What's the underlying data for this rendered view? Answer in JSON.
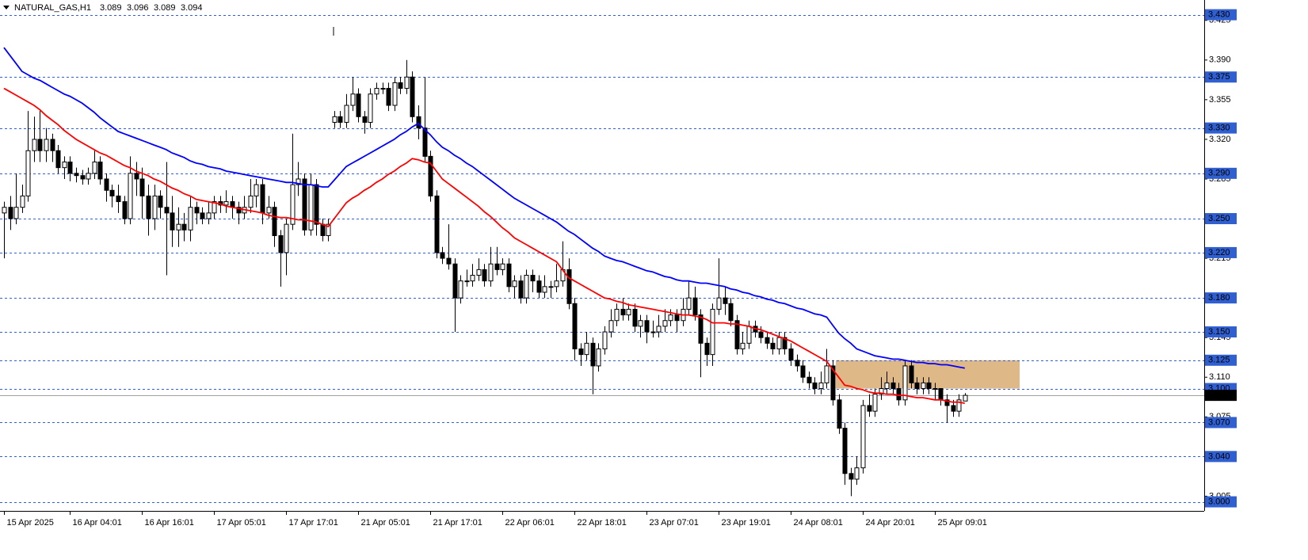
{
  "chart_data": {
    "type": "candlestick",
    "symbol": "NATURAL_GAS,H1",
    "categories": [
      "15 Apr 2025",
      null,
      null,
      null,
      null,
      null,
      null,
      null,
      null,
      null,
      null,
      "16 Apr 04:01",
      null,
      null,
      null,
      null,
      null,
      null,
      null,
      null,
      null,
      null,
      null,
      "16 Apr 16:01",
      null,
      null,
      null,
      null,
      null,
      null,
      null,
      null,
      null,
      null,
      null,
      "17 Apr 05:01",
      null,
      null,
      null,
      null,
      null,
      null,
      null,
      null,
      null,
      null,
      null,
      "17 Apr 17:01",
      null,
      null,
      null,
      null,
      null,
      null,
      null,
      null,
      null,
      null,
      null,
      "21 Apr 05:01",
      null,
      null,
      null,
      null,
      null,
      null,
      null,
      null,
      null,
      null,
      null,
      "21 Apr 17:01",
      null,
      null,
      null,
      null,
      null,
      null,
      null,
      null,
      null,
      null,
      null,
      "22 Apr 06:01",
      null,
      null,
      null,
      null,
      null,
      null,
      null,
      null,
      null,
      null,
      null,
      "22 Apr 18:01",
      null,
      null,
      null,
      null,
      null,
      null,
      null,
      null,
      null,
      null,
      null,
      "23 Apr 07:01",
      null,
      null,
      null,
      null,
      null,
      null,
      null,
      null,
      null,
      null,
      null,
      "23 Apr 19:01",
      null,
      null,
      null,
      null,
      null,
      null,
      null,
      null,
      null,
      null,
      null,
      "24 Apr 08:01",
      null,
      null,
      null,
      null,
      null,
      null,
      null,
      null,
      null,
      null,
      null,
      "24 Apr 20:01",
      null,
      null,
      null,
      null,
      null,
      null,
      null,
      null,
      null,
      null,
      null,
      "25 Apr 09:01",
      null,
      null,
      null,
      null,
      null
    ],
    "open": [
      3.255,
      3.26,
      3.25,
      3.26,
      3.27,
      3.31,
      3.32,
      3.31,
      3.32,
      3.31,
      3.295,
      3.3,
      3.29,
      3.288,
      3.285,
      3.29,
      3.3,
      3.285,
      3.275,
      3.27,
      3.265,
      3.25,
      3.29,
      3.285,
      3.27,
      3.25,
      3.27,
      3.26,
      3.255,
      3.24,
      3.245,
      3.24,
      3.26,
      3.255,
      3.25,
      3.255,
      3.265,
      3.262,
      3.265,
      3.26,
      3.255,
      3.26,
      3.27,
      3.28,
      3.255,
      3.26,
      3.235,
      3.22,
      3.245,
      3.28,
      3.285,
      3.24,
      3.28,
      3.245,
      3.235,
      3.335,
      3.34,
      3.335,
      3.35,
      3.36,
      3.34,
      3.335,
      3.36,
      3.365,
      3.365,
      3.35,
      3.37,
      3.365,
      3.375,
      3.34,
      3.33,
      3.305,
      3.27,
      3.22,
      3.215,
      3.21,
      3.18,
      3.195,
      3.195,
      3.2,
      3.205,
      3.195,
      3.21,
      3.205,
      3.21,
      3.19,
      3.195,
      3.18,
      3.2,
      3.195,
      3.185,
      3.19,
      3.19,
      3.195,
      3.205,
      3.175,
      3.135,
      3.13,
      3.14,
      3.12,
      3.135,
      3.15,
      3.16,
      3.17,
      3.165,
      3.17,
      3.155,
      3.16,
      3.15,
      3.15,
      3.155,
      3.16,
      3.165,
      3.16,
      3.17,
      3.18,
      3.165,
      3.14,
      3.13,
      3.17,
      3.18,
      3.175,
      3.16,
      3.135,
      3.14,
      3.155,
      3.15,
      3.145,
      3.14,
      3.135,
      3.145,
      3.135,
      3.125,
      3.12,
      3.11,
      3.105,
      3.1,
      3.105,
      3.12,
      3.09,
      3.065,
      3.025,
      3.02,
      3.03,
      3.085,
      3.08,
      3.095,
      3.1,
      3.105,
      3.1,
      3.09,
      3.12,
      3.105,
      3.1,
      3.105,
      3.1,
      3.1,
      3.09,
      3.085,
      3.08,
      3.089
    ],
    "high": [
      3.265,
      3.27,
      3.29,
      3.28,
      3.345,
      3.34,
      3.345,
      3.33,
      3.325,
      3.315,
      3.305,
      3.305,
      3.295,
      3.293,
      3.295,
      3.31,
      3.305,
      3.29,
      3.28,
      3.28,
      3.27,
      3.305,
      3.3,
      3.295,
      3.28,
      3.28,
      3.275,
      3.3,
      3.27,
      3.26,
      3.255,
      3.27,
      3.265,
      3.26,
      3.265,
      3.27,
      3.27,
      3.275,
      3.27,
      3.265,
      3.27,
      3.285,
      3.285,
      3.285,
      3.27,
      3.265,
      3.24,
      3.25,
      3.325,
      3.3,
      3.29,
      3.29,
      3.285,
      3.25,
      3.25,
      3.345,
      3.345,
      3.36,
      3.375,
      3.365,
      3.345,
      3.365,
      3.37,
      3.37,
      3.37,
      3.375,
      3.375,
      3.39,
      3.38,
      3.35,
      3.375,
      3.31,
      3.275,
      3.225,
      3.245,
      3.215,
      3.2,
      3.205,
      3.21,
      3.215,
      3.21,
      3.225,
      3.225,
      3.215,
      3.215,
      3.2,
      3.2,
      3.205,
      3.205,
      3.2,
      3.2,
      3.195,
      3.21,
      3.23,
      3.215,
      3.18,
      3.14,
      3.15,
      3.145,
      3.14,
      3.155,
      3.17,
      3.175,
      3.18,
      3.175,
      3.175,
      3.165,
      3.165,
      3.16,
      3.165,
      3.17,
      3.17,
      3.17,
      3.18,
      3.195,
      3.19,
      3.17,
      3.145,
      3.175,
      3.215,
      3.19,
      3.18,
      3.165,
      3.15,
      3.16,
      3.16,
      3.155,
      3.15,
      3.145,
      3.15,
      3.15,
      3.14,
      3.13,
      3.125,
      3.115,
      3.11,
      3.115,
      3.135,
      3.125,
      3.095,
      3.07,
      3.03,
      3.04,
      3.09,
      3.095,
      3.1,
      3.11,
      3.115,
      3.11,
      3.105,
      3.125,
      3.125,
      3.11,
      3.11,
      3.11,
      3.105,
      3.1,
      3.095,
      3.09,
      3.095,
      3.096
    ],
    "low": [
      3.215,
      3.24,
      3.245,
      3.255,
      3.265,
      3.3,
      3.3,
      3.3,
      3.3,
      3.29,
      3.285,
      3.283,
      3.282,
      3.28,
      3.28,
      3.285,
      3.28,
      3.265,
      3.26,
      3.255,
      3.245,
      3.245,
      3.27,
      3.25,
      3.235,
      3.24,
      3.25,
      3.2,
      3.225,
      3.225,
      3.23,
      3.23,
      3.245,
      3.245,
      3.245,
      3.25,
      3.255,
      3.255,
      3.25,
      3.245,
      3.25,
      3.255,
      3.26,
      3.245,
      3.25,
      3.225,
      3.19,
      3.2,
      3.24,
      3.27,
      3.235,
      3.235,
      3.235,
      3.23,
      3.23,
      3.33,
      3.33,
      3.33,
      3.345,
      3.335,
      3.325,
      3.33,
      3.355,
      3.36,
      3.345,
      3.345,
      3.36,
      3.36,
      3.335,
      3.32,
      3.3,
      3.265,
      3.215,
      3.21,
      3.205,
      3.15,
      3.175,
      3.19,
      3.19,
      3.195,
      3.19,
      3.19,
      3.2,
      3.2,
      3.185,
      3.18,
      3.175,
      3.175,
      3.185,
      3.18,
      3.18,
      3.18,
      3.185,
      3.19,
      3.17,
      3.125,
      3.12,
      3.125,
      3.095,
      3.115,
      3.13,
      3.145,
      3.155,
      3.16,
      3.16,
      3.15,
      3.145,
      3.14,
      3.145,
      3.145,
      3.15,
      3.155,
      3.15,
      3.155,
      3.165,
      3.16,
      3.11,
      3.12,
      3.12,
      3.165,
      3.165,
      3.155,
      3.13,
      3.13,
      3.135,
      3.145,
      3.14,
      3.135,
      3.13,
      3.13,
      3.13,
      3.12,
      3.115,
      3.105,
      3.1,
      3.095,
      3.095,
      3.1,
      3.085,
      3.06,
      3.015,
      3.005,
      3.015,
      3.025,
      3.075,
      3.075,
      3.09,
      3.095,
      3.095,
      3.085,
      3.085,
      3.1,
      3.095,
      3.095,
      3.095,
      3.09,
      3.085,
      3.07,
      3.075,
      3.075,
      3.089
    ],
    "close": [
      3.26,
      3.25,
      3.26,
      3.27,
      3.31,
      3.32,
      3.31,
      3.32,
      3.31,
      3.295,
      3.3,
      3.29,
      3.288,
      3.285,
      3.29,
      3.3,
      3.285,
      3.275,
      3.27,
      3.265,
      3.25,
      3.29,
      3.285,
      3.27,
      3.25,
      3.27,
      3.26,
      3.255,
      3.24,
      3.245,
      3.24,
      3.26,
      3.255,
      3.25,
      3.255,
      3.265,
      3.262,
      3.265,
      3.26,
      3.255,
      3.26,
      3.27,
      3.28,
      3.255,
      3.26,
      3.235,
      3.22,
      3.245,
      3.28,
      3.285,
      3.24,
      3.28,
      3.245,
      3.235,
      3.245,
      3.34,
      3.335,
      3.35,
      3.36,
      3.34,
      3.335,
      3.36,
      3.365,
      3.365,
      3.35,
      3.37,
      3.365,
      3.375,
      3.34,
      3.33,
      3.305,
      3.27,
      3.22,
      3.215,
      3.21,
      3.18,
      3.195,
      3.195,
      3.2,
      3.205,
      3.195,
      3.21,
      3.205,
      3.21,
      3.19,
      3.195,
      3.18,
      3.2,
      3.195,
      3.185,
      3.19,
      3.19,
      3.195,
      3.205,
      3.175,
      3.135,
      3.13,
      3.14,
      3.12,
      3.135,
      3.15,
      3.16,
      3.17,
      3.165,
      3.17,
      3.155,
      3.16,
      3.15,
      3.15,
      3.155,
      3.16,
      3.165,
      3.16,
      3.17,
      3.18,
      3.165,
      3.14,
      3.13,
      3.17,
      3.18,
      3.175,
      3.16,
      3.135,
      3.14,
      3.155,
      3.15,
      3.145,
      3.14,
      3.135,
      3.145,
      3.135,
      3.125,
      3.12,
      3.11,
      3.105,
      3.1,
      3.105,
      3.12,
      3.09,
      3.065,
      3.025,
      3.02,
      3.03,
      3.085,
      3.08,
      3.095,
      3.1,
      3.105,
      3.1,
      3.09,
      3.12,
      3.105,
      3.1,
      3.105,
      3.1,
      3.1,
      3.09,
      3.085,
      3.08,
      3.09,
      3.094
    ],
    "series": [
      {
        "color": "#ff0000",
        "values": [
          3.365,
          3.362,
          3.359,
          3.356,
          3.353,
          3.35,
          3.346,
          3.341,
          3.337,
          3.333,
          3.328,
          3.324,
          3.32,
          3.317,
          3.314,
          3.311,
          3.308,
          3.306,
          3.303,
          3.3,
          3.297,
          3.295,
          3.292,
          3.29,
          3.288,
          3.285,
          3.283,
          3.28,
          3.277,
          3.275,
          3.272,
          3.27,
          3.267,
          3.266,
          3.265,
          3.264,
          3.263,
          3.261,
          3.26,
          3.259,
          3.258,
          3.257,
          3.256,
          3.255,
          3.253,
          3.252,
          3.251,
          3.251,
          3.25,
          3.249,
          3.249,
          3.248,
          3.247,
          3.245,
          3.243,
          3.25,
          3.257,
          3.264,
          3.268,
          3.271,
          3.275,
          3.278,
          3.282,
          3.285,
          3.289,
          3.292,
          3.296,
          3.299,
          3.303,
          3.302,
          3.3,
          3.299,
          3.292,
          3.285,
          3.281,
          3.277,
          3.273,
          3.269,
          3.265,
          3.261,
          3.256,
          3.252,
          3.247,
          3.242,
          3.238,
          3.233,
          3.23,
          3.227,
          3.224,
          3.221,
          3.218,
          3.215,
          3.212,
          3.205,
          3.198,
          3.195,
          3.192,
          3.189,
          3.186,
          3.183,
          3.18,
          3.179,
          3.177,
          3.176,
          3.174,
          3.173,
          3.172,
          3.171,
          3.17,
          3.169,
          3.168,
          3.167,
          3.166,
          3.165,
          3.165,
          3.164,
          3.163,
          3.161,
          3.158,
          3.158,
          3.158,
          3.157,
          3.157,
          3.156,
          3.155,
          3.153,
          3.152,
          3.15,
          3.148,
          3.146,
          3.144,
          3.142,
          3.139,
          3.136,
          3.133,
          3.13,
          3.127,
          3.124,
          3.117,
          3.11,
          3.103,
          3.102,
          3.1,
          3.099,
          3.097,
          3.096,
          3.096,
          3.095,
          3.095,
          3.094,
          3.094,
          3.093,
          3.092,
          3.092,
          3.091,
          3.09,
          3.09,
          3.089,
          3.088,
          3.088,
          3.087
        ]
      },
      {
        "color": "#0000ff",
        "values": [
          3.401,
          3.394,
          3.387,
          3.38,
          3.377,
          3.374,
          3.372,
          3.369,
          3.366,
          3.363,
          3.36,
          3.358,
          3.355,
          3.352,
          3.348,
          3.344,
          3.339,
          3.335,
          3.331,
          3.327,
          3.325,
          3.323,
          3.321,
          3.319,
          3.317,
          3.315,
          3.313,
          3.311,
          3.308,
          3.306,
          3.304,
          3.301,
          3.299,
          3.298,
          3.296,
          3.295,
          3.294,
          3.292,
          3.291,
          3.29,
          3.289,
          3.288,
          3.287,
          3.286,
          3.285,
          3.284,
          3.283,
          3.282,
          3.282,
          3.281,
          3.28,
          3.28,
          3.279,
          3.278,
          3.278,
          3.284,
          3.29,
          3.296,
          3.299,
          3.302,
          3.305,
          3.308,
          3.311,
          3.314,
          3.317,
          3.32,
          3.324,
          3.327,
          3.331,
          3.334,
          3.329,
          3.324,
          3.318,
          3.313,
          3.31,
          3.306,
          3.303,
          3.299,
          3.296,
          3.292,
          3.288,
          3.284,
          3.28,
          3.276,
          3.272,
          3.268,
          3.265,
          3.262,
          3.259,
          3.256,
          3.253,
          3.25,
          3.247,
          3.243,
          3.239,
          3.236,
          3.232,
          3.228,
          3.224,
          3.221,
          3.217,
          3.215,
          3.213,
          3.212,
          3.21,
          3.208,
          3.206,
          3.204,
          3.203,
          3.201,
          3.199,
          3.198,
          3.196,
          3.195,
          3.195,
          3.194,
          3.193,
          3.193,
          3.192,
          3.191,
          3.19,
          3.188,
          3.187,
          3.185,
          3.184,
          3.182,
          3.181,
          3.179,
          3.178,
          3.176,
          3.175,
          3.173,
          3.171,
          3.17,
          3.168,
          3.166,
          3.165,
          3.163,
          3.156,
          3.149,
          3.144,
          3.14,
          3.135,
          3.133,
          3.131,
          3.129,
          3.128,
          3.127,
          3.126,
          3.126,
          3.125,
          3.124,
          3.123,
          3.123,
          3.122,
          3.122,
          3.121,
          3.121,
          3.12,
          3.119,
          3.118
        ]
      }
    ],
    "ylim": [
      2.992,
      3.443
    ],
    "yticks": [
      3.005,
      {
        "value": 3.04,
        "label": "3.040"
      },
      3.075,
      {
        "value": 3.11,
        "label": "3.110"
      },
      3.145,
      {
        "value": 3.18,
        "label": "3.180"
      },
      3.215,
      {
        "value": 3.25,
        "label": "3.250"
      },
      3.285,
      {
        "value": 3.32,
        "label": "3.320"
      },
      3.355,
      {
        "value": 3.39,
        "label": "3.390"
      },
      3.425
    ],
    "levels": [
      {
        "value": 3.43,
        "label": "3.430"
      },
      {
        "value": 3.375,
        "label": "3.375"
      },
      {
        "value": 3.33,
        "label": "3.330"
      },
      {
        "value": 3.29,
        "label": "3.290"
      },
      {
        "value": 3.25,
        "label": "3.250"
      },
      {
        "value": 3.22,
        "label": "3.220"
      },
      {
        "value": 3.18,
        "label": "3.180"
      },
      {
        "value": 3.15,
        "label": "3.150"
      },
      {
        "value": 3.125,
        "label": "3.125"
      },
      {
        "value": 3.1,
        "label": "3.100"
      },
      {
        "value": 3.07,
        "label": "3.070"
      },
      {
        "value": 3.04,
        "label": "3.040"
      },
      {
        "value": 3,
        "label": "3.000"
      }
    ],
    "level_color": "#2f5fd0",
    "zone": {
      "from": 3.1,
      "to": 3.125,
      "color": "#deb887"
    },
    "up_color": "#ffffff",
    "down_color": "#000000"
  }
}
